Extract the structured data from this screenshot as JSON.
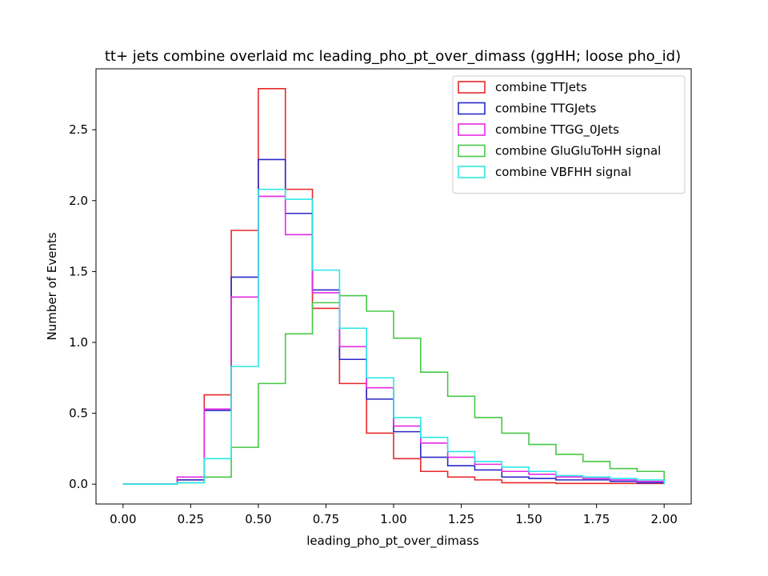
{
  "chart_data": {
    "type": "histogram-step",
    "title": "tt+ jets combine overlaid mc leading_pho_pt_over_dimass (ggHH; loose pho_id)",
    "xlabel": "leading_pho_pt_over_dimass",
    "ylabel": "Number of Events",
    "xlim": [
      -0.1,
      2.1
    ],
    "ylim": [
      -0.14,
      2.93
    ],
    "x_ticks": [
      0.0,
      0.25,
      0.5,
      0.75,
      1.0,
      1.25,
      1.5,
      1.75,
      2.0
    ],
    "x_tick_labels": [
      "0.00",
      "0.25",
      "0.50",
      "0.75",
      "1.00",
      "1.25",
      "1.50",
      "1.75",
      "2.00"
    ],
    "y_ticks": [
      0.0,
      0.5,
      1.0,
      1.5,
      2.0,
      2.5
    ],
    "y_tick_labels": [
      "0.0",
      "0.5",
      "1.0",
      "1.5",
      "2.0",
      "2.5"
    ],
    "bin_edges": [
      0.0,
      0.1,
      0.2,
      0.3,
      0.4,
      0.5,
      0.6,
      0.7,
      0.8,
      0.9,
      1.0,
      1.1,
      1.2,
      1.3,
      1.4,
      1.5,
      1.6,
      1.7,
      1.8,
      1.9,
      2.0
    ],
    "grid": false,
    "legend_position": "top-right",
    "series": [
      {
        "name": "combine TTJets",
        "color": "#e8292a",
        "values": [
          0.0,
          0.0,
          0.03,
          0.63,
          1.79,
          2.79,
          2.08,
          1.24,
          0.71,
          0.36,
          0.18,
          0.09,
          0.05,
          0.03,
          0.01,
          0.01,
          0.005,
          0.005,
          0.005,
          0.005
        ]
      },
      {
        "name": "combine TTGJets",
        "color": "#2a28c8",
        "values": [
          0.0,
          0.0,
          0.03,
          0.52,
          1.46,
          2.29,
          1.91,
          1.37,
          0.88,
          0.6,
          0.37,
          0.19,
          0.13,
          0.1,
          0.05,
          0.04,
          0.03,
          0.03,
          0.02,
          0.01
        ]
      },
      {
        "name": "combine TTGG_0Jets",
        "color": "#e529e5",
        "values": [
          0.0,
          0.0,
          0.05,
          0.53,
          1.32,
          2.03,
          1.76,
          1.35,
          0.97,
          0.68,
          0.41,
          0.29,
          0.19,
          0.14,
          0.09,
          0.07,
          0.05,
          0.04,
          0.03,
          0.02
        ]
      },
      {
        "name": "combine GluGluToHH signal",
        "color": "#46c846",
        "values": [
          0.0,
          0.0,
          0.01,
          0.05,
          0.26,
          0.71,
          1.06,
          1.28,
          1.33,
          1.22,
          1.03,
          0.79,
          0.62,
          0.47,
          0.36,
          0.28,
          0.21,
          0.16,
          0.11,
          0.09
        ]
      },
      {
        "name": "combine VBFHH signal",
        "color": "#2ae8e8",
        "values": [
          0.0,
          0.0,
          0.01,
          0.18,
          0.83,
          2.08,
          2.01,
          1.51,
          1.1,
          0.75,
          0.47,
          0.33,
          0.23,
          0.16,
          0.12,
          0.09,
          0.06,
          0.05,
          0.04,
          0.03
        ]
      }
    ]
  }
}
